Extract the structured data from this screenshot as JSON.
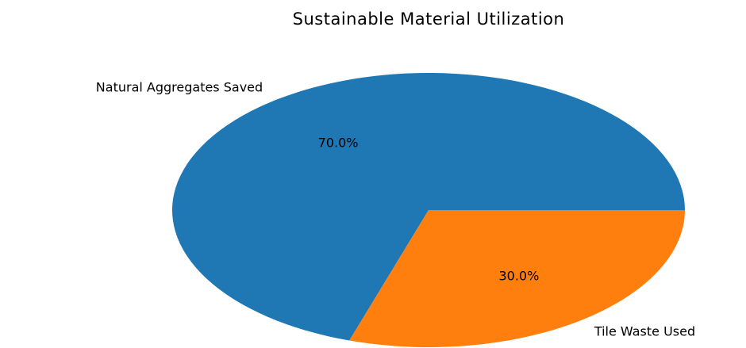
{
  "chart_data": {
    "type": "pie",
    "title": "Sustainable Material Utilization",
    "categories": [
      "Natural Aggregates Saved",
      "Tile Waste Used"
    ],
    "values": [
      70,
      30
    ],
    "percent_labels": [
      "70.0%",
      "30.0%"
    ],
    "colors": [
      "#1f77b4",
      "#ff7f0e"
    ],
    "start_angle_deg": 0,
    "direction": "counterclockwise",
    "legend": "none"
  }
}
